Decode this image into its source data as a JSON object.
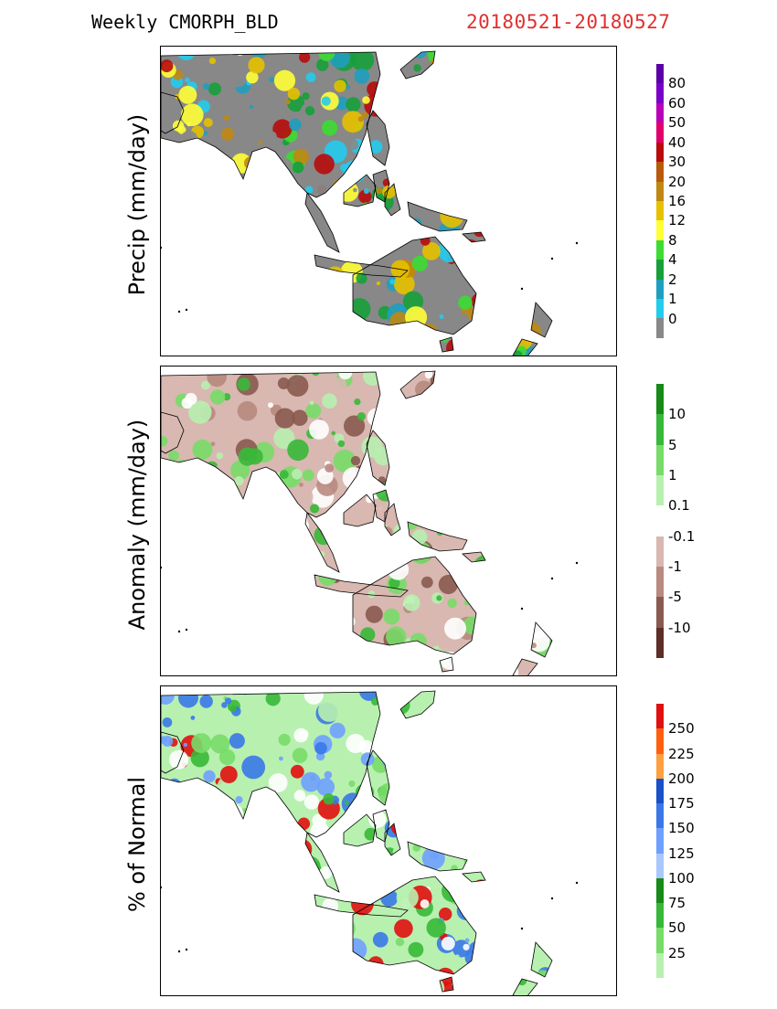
{
  "header": {
    "title": "Weekly CMORPH_BLD",
    "date_range": "20180521-20180527",
    "date_color": "#e03030"
  },
  "panels": [
    {
      "id": "precip",
      "ylabel": "Precip (mm/day)",
      "colorbar": {
        "colors": [
          "#888888",
          "#22ccee",
          "#1f9fbf",
          "#17a03a",
          "#3cdc32",
          "#ffff38",
          "#e6c100",
          "#c08812",
          "#b85a0a",
          "#b80c0c",
          "#e0006c",
          "#b800b8",
          "#7a00c8",
          "#5a00a8"
        ],
        "labels": [
          "0",
          "1",
          "2",
          "4",
          "8",
          "12",
          "16",
          "20",
          "30",
          "40",
          "50",
          "60",
          "80"
        ]
      },
      "land_palette": [
        "#888888",
        "#22ccee",
        "#1f9fbf",
        "#17a03a",
        "#3cdc32",
        "#ffff38",
        "#e6c100",
        "#c08812",
        "#b80c0c"
      ]
    },
    {
      "id": "anomaly",
      "ylabel": "Anomaly (mm/day)",
      "colorbar": {
        "colors": [
          "#5c2e26",
          "#8a5a50",
          "#b88a80",
          "#d8b8b0",
          "#ffffff",
          "#b8f0b0",
          "#78dc68",
          "#38b838",
          "#178a17"
        ],
        "labels": [
          "-10",
          "-5",
          "-1",
          "-0.1",
          "0.1",
          "1",
          "5",
          "10"
        ]
      },
      "land_palette": [
        "#d8b8b0",
        "#b88a80",
        "#8a5a50",
        "#ffffff",
        "#b8f0b0",
        "#78dc68",
        "#38b838"
      ]
    },
    {
      "id": "percent",
      "ylabel": "% of Normal",
      "colorbar": {
        "colors": [
          "#b8f0b0",
          "#78dc68",
          "#38b838",
          "#178a17",
          "#a8c8ff",
          "#6fa0ff",
          "#3a78e8",
          "#1a50c8",
          "#ffa040",
          "#ff6010",
          "#e01010"
        ],
        "labels": [
          "25",
          "50",
          "75",
          "100",
          "125",
          "150",
          "175",
          "200",
          "225",
          "250"
        ]
      },
      "land_palette": [
        "#b8f0b0",
        "#78dc68",
        "#38b838",
        "#6fa0ff",
        "#3a78e8",
        "#e01010",
        "#ffffff"
      ]
    }
  ]
}
